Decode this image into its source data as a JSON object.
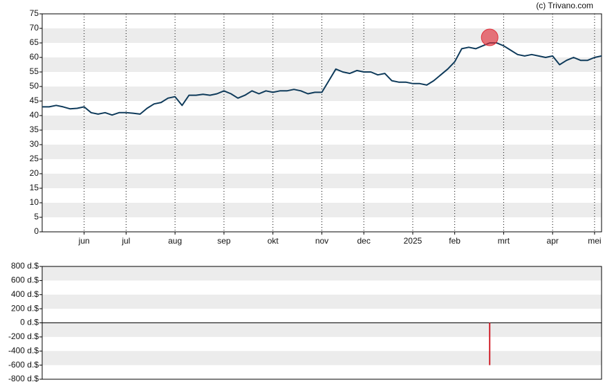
{
  "credit": "(c) Trivano.com",
  "chart_data": [
    {
      "type": "line",
      "categories": [
        null,
        null,
        null,
        null,
        null,
        null,
        "jun",
        null,
        null,
        null,
        null,
        null,
        "jul",
        null,
        null,
        null,
        null,
        null,
        null,
        "aug",
        null,
        null,
        null,
        null,
        null,
        null,
        "sep",
        null,
        null,
        null,
        null,
        null,
        null,
        "okt",
        null,
        null,
        null,
        null,
        null,
        null,
        "nov",
        null,
        null,
        null,
        null,
        null,
        "dec",
        null,
        null,
        null,
        null,
        null,
        null,
        "2025",
        null,
        null,
        null,
        null,
        null,
        "feb",
        null,
        null,
        null,
        null,
        null,
        null,
        "mrt",
        null,
        null,
        null,
        null,
        null,
        null,
        "apr",
        null,
        null,
        null,
        null,
        null,
        "mei",
        null
      ],
      "series": [
        {
          "color": "#0e3a5a",
          "values": [
            43,
            43,
            43.5,
            43,
            42.3,
            42.5,
            43,
            41,
            40.5,
            41,
            40.2,
            41,
            41,
            40.8,
            40.5,
            42.5,
            44,
            44.5,
            46,
            46.5,
            43.5,
            47,
            47,
            47.3,
            47,
            47.5,
            48.5,
            47.5,
            46,
            47,
            48.5,
            47.5,
            48.5,
            48,
            48.5,
            48.5,
            49,
            48.5,
            47.5,
            48,
            48,
            52,
            56,
            55,
            54.5,
            55.5,
            55,
            55,
            54,
            54.5,
            52,
            51.5,
            51.5,
            51,
            51,
            50.5,
            52,
            54,
            56,
            58.5,
            63,
            63.5,
            63,
            64,
            65,
            65,
            64,
            62.5,
            61,
            60.5,
            61,
            60.5,
            60,
            60.5,
            57.5,
            59,
            60,
            59,
            59,
            60,
            60.5
          ]
        }
      ],
      "ylim": [
        0,
        75
      ],
      "yticks": [
        0,
        5,
        10,
        15,
        20,
        25,
        30,
        35,
        40,
        45,
        50,
        55,
        60,
        65,
        70,
        75
      ],
      "grid": true,
      "marker_color": "#e0303a"
    },
    {
      "type": "bar",
      "color": "#d0202a",
      "values": [
        null,
        null,
        null,
        null,
        null,
        null,
        null,
        null,
        null,
        null,
        null,
        null,
        null,
        null,
        null,
        null,
        null,
        null,
        null,
        null,
        null,
        null,
        null,
        null,
        null,
        null,
        null,
        null,
        null,
        null,
        null,
        null,
        null,
        null,
        null,
        null,
        null,
        null,
        null,
        null,
        null,
        null,
        null,
        null,
        null,
        null,
        null,
        null,
        null,
        null,
        null,
        null,
        null,
        null,
        null,
        null,
        null,
        null,
        null,
        null,
        null,
        null,
        null,
        null,
        -600,
        null,
        null,
        null,
        null,
        null,
        null,
        null,
        null,
        null,
        null,
        null,
        null,
        null,
        null,
        null,
        null
      ],
      "ylim": [
        -800,
        800
      ],
      "yticks": [
        {
          "value": -800,
          "label": "-800 d.$"
        },
        {
          "value": -600,
          "label": "-600 d.$"
        },
        {
          "value": -400,
          "label": "-400 d.$"
        },
        {
          "value": -200,
          "label": "-200 d.$"
        },
        {
          "value": 0,
          "label": "0 d.$"
        },
        {
          "value": 200,
          "label": "200 d.$"
        },
        {
          "value": 400,
          "label": "400 d.$"
        },
        {
          "value": 600,
          "label": "600 d.$"
        },
        {
          "value": 800,
          "label": "800 d.$"
        }
      ],
      "grid": true
    }
  ]
}
